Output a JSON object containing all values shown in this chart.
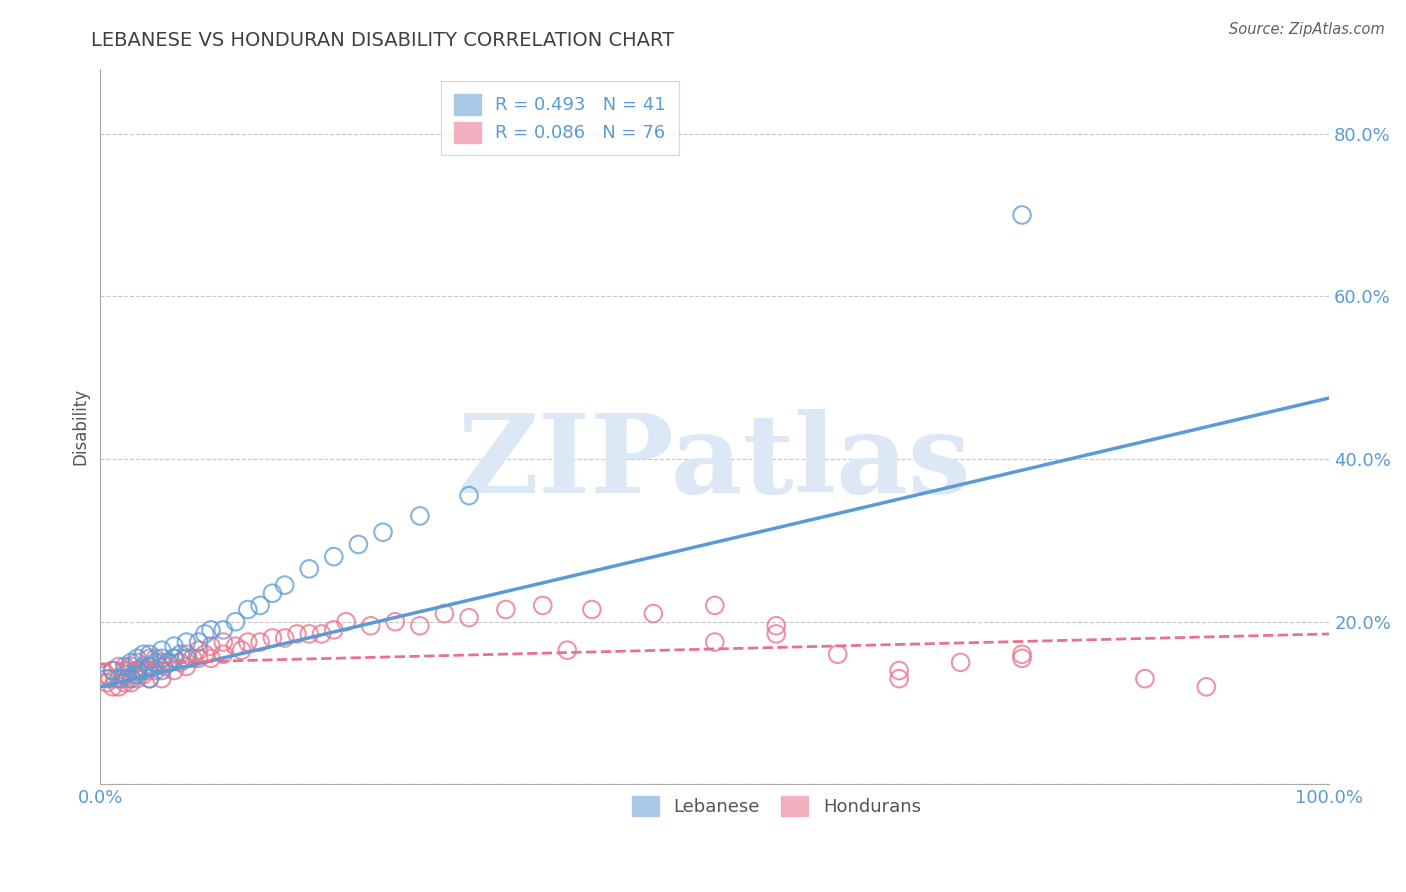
{
  "title": "LEBANESE VS HONDURAN DISABILITY CORRELATION CHART",
  "source": "Source: ZipAtlas.com",
  "ylabel": "Disability",
  "xlim": [
    0,
    1.0
  ],
  "ylim": [
    0.0,
    0.88
  ],
  "yticks": [
    0.0,
    0.2,
    0.4,
    0.6,
    0.8
  ],
  "ytick_labels": [
    "",
    "20.0%",
    "40.0%",
    "60.0%",
    "80.0%"
  ],
  "xticks": [
    0.0,
    0.25,
    0.5,
    0.75,
    1.0
  ],
  "xtick_labels": [
    "0.0%",
    "",
    "",
    "",
    "100.0%"
  ],
  "grid_color": "#c8c8c8",
  "background_color": "#ffffff",
  "watermark": "ZIPatlas",
  "watermark_color": "#dce8f5",
  "legend_R1": "R = 0.493",
  "legend_N1": "N = 41",
  "legend_R2": "R = 0.086",
  "legend_N2": "N = 76",
  "blue_color": "#5b9bd5",
  "pink_color": "#e8728a",
  "title_color": "#404040",
  "axis_label_color": "#5b9bd5",
  "blue_line_x0": 0.0,
  "blue_line_y0": 0.12,
  "blue_line_x1": 1.0,
  "blue_line_y1": 0.475,
  "pink_line_x0": 0.0,
  "pink_line_y0": 0.148,
  "pink_line_x1": 1.0,
  "pink_line_y1": 0.185,
  "lebanese_x": [
    0.005,
    0.01,
    0.015,
    0.02,
    0.02,
    0.025,
    0.025,
    0.03,
    0.03,
    0.03,
    0.035,
    0.035,
    0.04,
    0.04,
    0.04,
    0.045,
    0.05,
    0.05,
    0.05,
    0.055,
    0.06,
    0.06,
    0.065,
    0.07,
    0.07,
    0.08,
    0.085,
    0.09,
    0.1,
    0.11,
    0.12,
    0.13,
    0.14,
    0.15,
    0.17,
    0.19,
    0.21,
    0.23,
    0.26,
    0.3,
    0.75
  ],
  "lebanese_y": [
    0.13,
    0.14,
    0.13,
    0.135,
    0.145,
    0.13,
    0.15,
    0.135,
    0.14,
    0.155,
    0.14,
    0.16,
    0.13,
    0.145,
    0.16,
    0.15,
    0.14,
    0.155,
    0.165,
    0.15,
    0.155,
    0.17,
    0.16,
    0.155,
    0.175,
    0.175,
    0.185,
    0.19,
    0.19,
    0.2,
    0.215,
    0.22,
    0.235,
    0.245,
    0.265,
    0.28,
    0.295,
    0.31,
    0.33,
    0.355,
    0.7
  ],
  "honduran_x": [
    0.005,
    0.005,
    0.008,
    0.01,
    0.01,
    0.012,
    0.015,
    0.015,
    0.018,
    0.02,
    0.02,
    0.022,
    0.025,
    0.025,
    0.028,
    0.03,
    0.03,
    0.03,
    0.035,
    0.035,
    0.038,
    0.04,
    0.04,
    0.04,
    0.045,
    0.045,
    0.05,
    0.05,
    0.052,
    0.055,
    0.06,
    0.06,
    0.065,
    0.07,
    0.07,
    0.075,
    0.08,
    0.08,
    0.085,
    0.09,
    0.09,
    0.1,
    0.1,
    0.11,
    0.115,
    0.12,
    0.13,
    0.14,
    0.15,
    0.16,
    0.17,
    0.18,
    0.19,
    0.2,
    0.22,
    0.24,
    0.26,
    0.28,
    0.3,
    0.33,
    0.36,
    0.38,
    0.4,
    0.45,
    0.5,
    0.55,
    0.6,
    0.65,
    0.7,
    0.75,
    0.5,
    0.55,
    0.65,
    0.75,
    0.85,
    0.9
  ],
  "honduran_y": [
    0.125,
    0.135,
    0.13,
    0.12,
    0.14,
    0.13,
    0.12,
    0.145,
    0.13,
    0.125,
    0.14,
    0.13,
    0.125,
    0.145,
    0.135,
    0.13,
    0.14,
    0.15,
    0.135,
    0.145,
    0.14,
    0.13,
    0.145,
    0.155,
    0.14,
    0.155,
    0.13,
    0.15,
    0.145,
    0.15,
    0.14,
    0.155,
    0.15,
    0.145,
    0.16,
    0.155,
    0.155,
    0.165,
    0.16,
    0.155,
    0.17,
    0.16,
    0.175,
    0.17,
    0.165,
    0.175,
    0.175,
    0.18,
    0.18,
    0.185,
    0.185,
    0.185,
    0.19,
    0.2,
    0.195,
    0.2,
    0.195,
    0.21,
    0.205,
    0.215,
    0.22,
    0.165,
    0.215,
    0.21,
    0.175,
    0.185,
    0.16,
    0.14,
    0.15,
    0.16,
    0.22,
    0.195,
    0.13,
    0.155,
    0.13,
    0.12
  ]
}
